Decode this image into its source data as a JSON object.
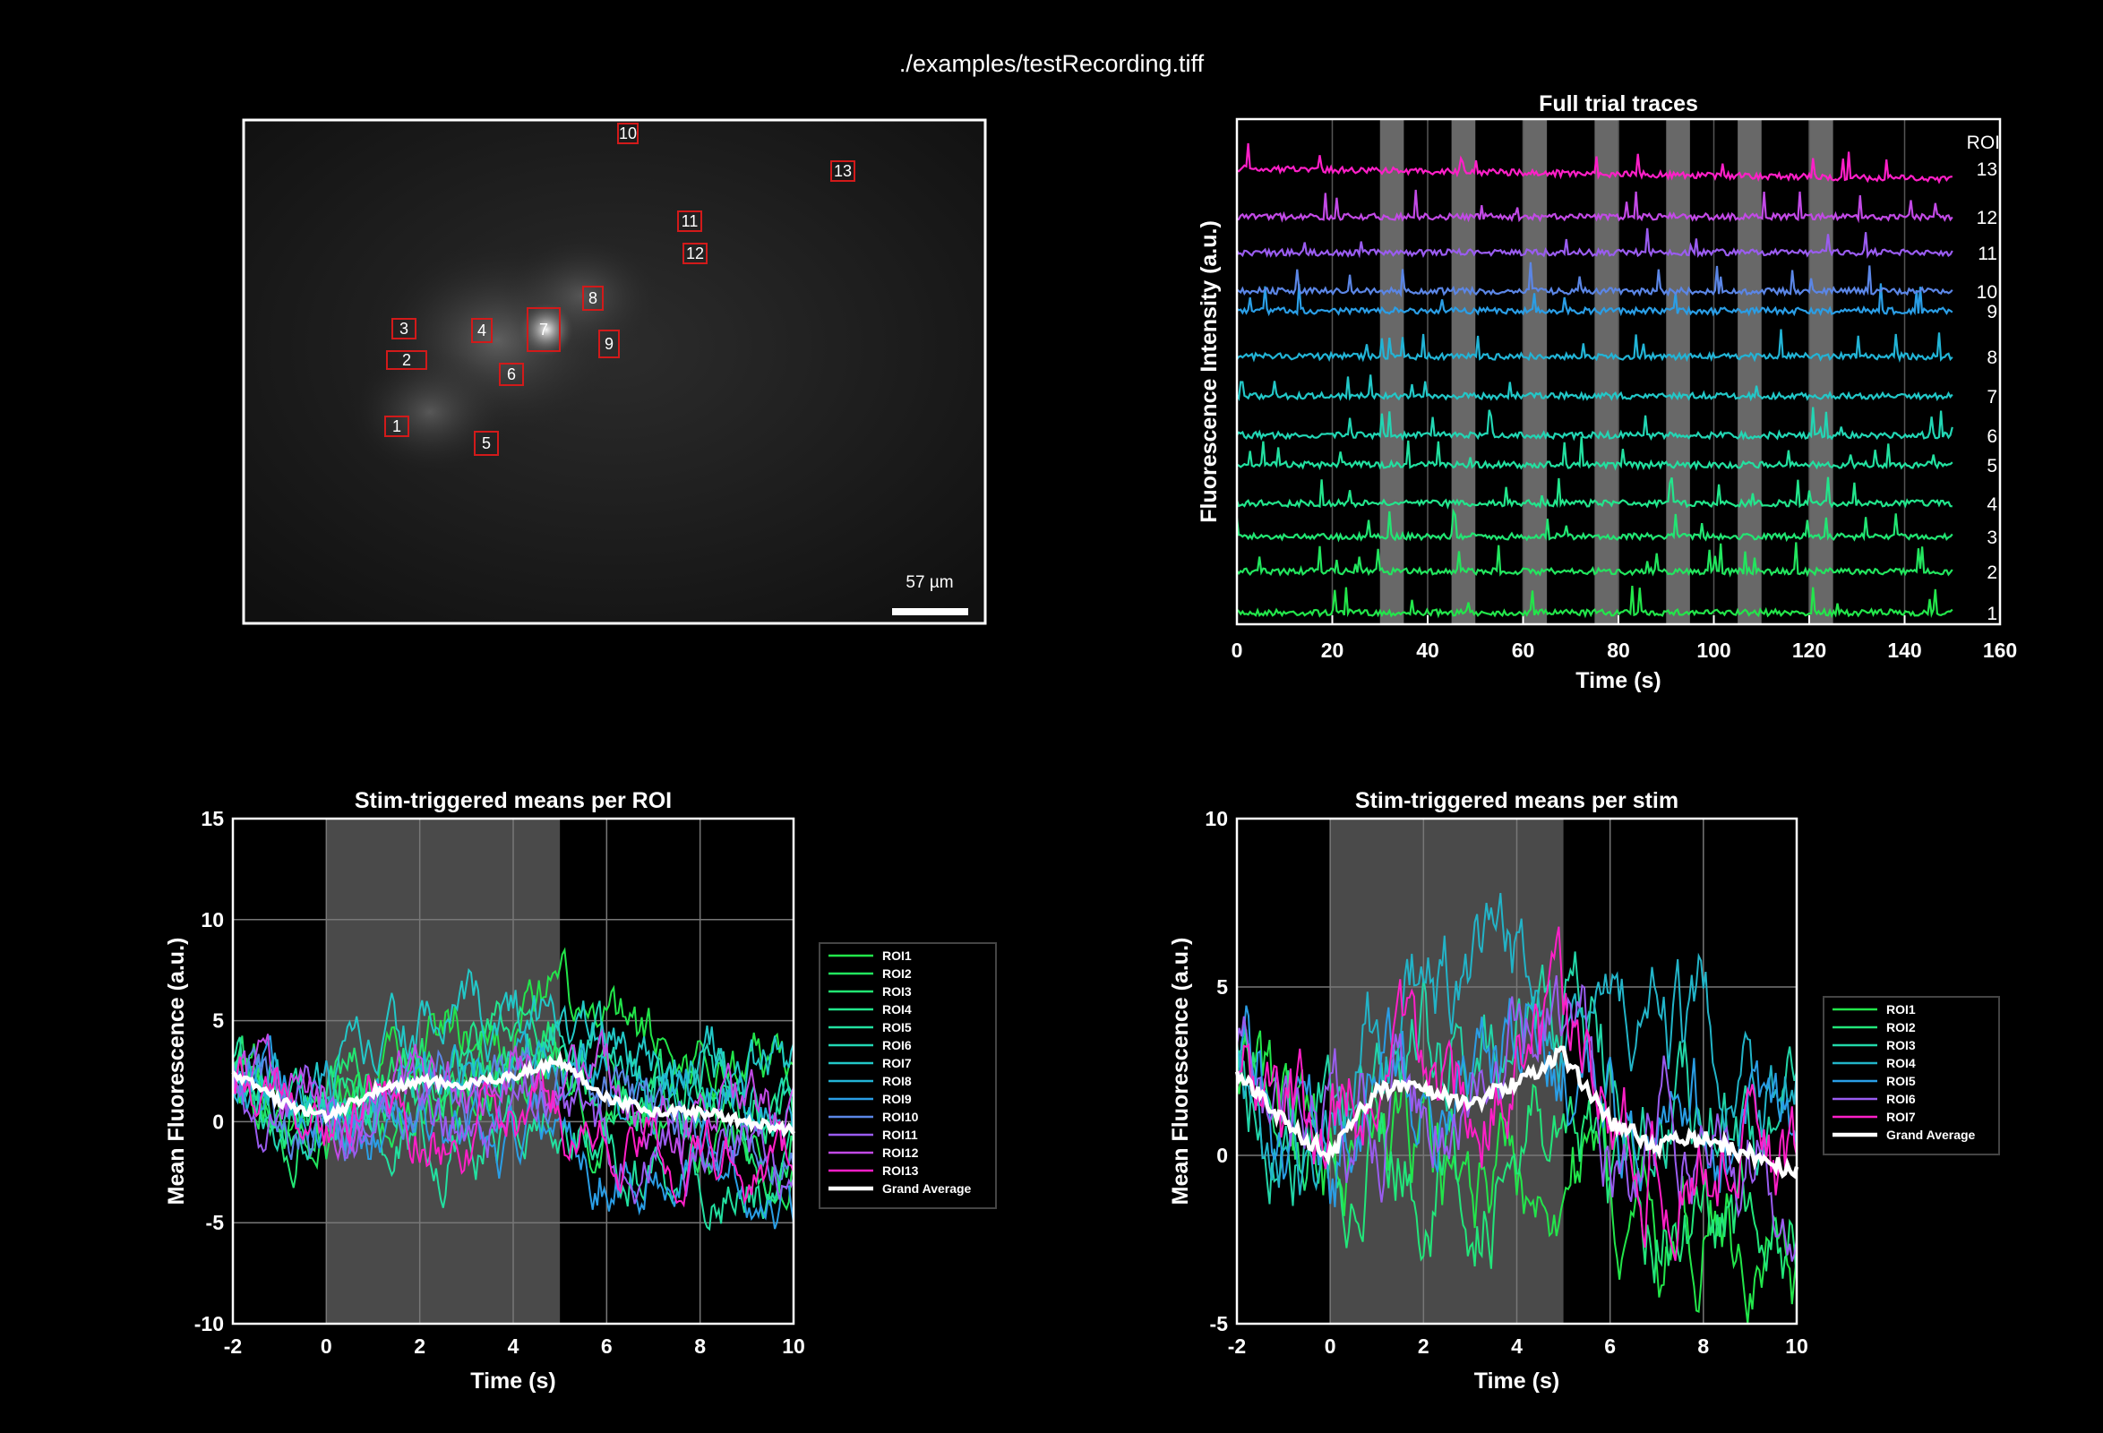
{
  "figure_title": "./examples/testRecording.tiff",
  "image_panel": {
    "scalebar_label": "57 µm",
    "rois": [
      "1",
      "2",
      "3",
      "4",
      "5",
      "6",
      "7",
      "8",
      "9",
      "10",
      "11",
      "12",
      "13"
    ]
  },
  "chart_data": [
    {
      "type": "line",
      "id": "full-trial",
      "title": "Full trial traces",
      "xlabel": "Time (s)",
      "ylabel": "Fluorescence Intensity (a.u.)",
      "xlim": [
        0,
        160
      ],
      "xticks": [
        0,
        20,
        40,
        60,
        80,
        100,
        120,
        140,
        160
      ],
      "grid": true,
      "legend_title": "ROI",
      "stim_windows": [
        [
          30,
          35
        ],
        [
          45,
          50
        ],
        [
          60,
          65
        ],
        [
          75,
          80
        ],
        [
          90,
          95
        ],
        [
          105,
          110
        ],
        [
          120,
          125
        ]
      ],
      "series": [
        {
          "name": "1",
          "color": "#22e64a",
          "offset": 1
        },
        {
          "name": "2",
          "color": "#22e65e",
          "offset": 2
        },
        {
          "name": "3",
          "color": "#22e673",
          "offset": 3
        },
        {
          "name": "4",
          "color": "#22e68c",
          "offset": 4
        },
        {
          "name": "5",
          "color": "#22e0a0",
          "offset": 5
        },
        {
          "name": "6",
          "color": "#22d6b4",
          "offset": 6
        },
        {
          "name": "7",
          "color": "#22c8c8",
          "offset": 7
        },
        {
          "name": "8",
          "color": "#22b4d6",
          "offset": 8
        },
        {
          "name": "9",
          "color": "#2a9ee6",
          "offset": 9
        },
        {
          "name": "10",
          "color": "#5b86e6",
          "offset": 10
        },
        {
          "name": "11",
          "color": "#9a5cf0",
          "offset": 11
        },
        {
          "name": "12",
          "color": "#c24ae6",
          "offset": 12
        },
        {
          "name": "13",
          "color": "#ff1fc8",
          "offset": 13
        }
      ]
    },
    {
      "type": "line",
      "id": "per-roi",
      "title": "Stim-triggered means per ROI",
      "xlabel": "Time (s)",
      "ylabel": "Mean Fluorescence (a.u.)",
      "xlim": [
        -2,
        10
      ],
      "ylim": [
        -10,
        15
      ],
      "xticks": [
        -2,
        0,
        2,
        4,
        6,
        8,
        10
      ],
      "yticks": [
        -10,
        -5,
        0,
        5,
        10,
        15
      ],
      "grid": true,
      "stim_window": [
        0,
        5
      ],
      "legend_placement": "outside-right",
      "series": [
        {
          "name": "ROI1",
          "color": "#22e64a"
        },
        {
          "name": "ROI2",
          "color": "#22e65e"
        },
        {
          "name": "ROI3",
          "color": "#22e673"
        },
        {
          "name": "ROI4",
          "color": "#22e68c"
        },
        {
          "name": "ROI5",
          "color": "#22e0a0"
        },
        {
          "name": "ROI6",
          "color": "#22d6b4"
        },
        {
          "name": "ROI7",
          "color": "#22c8c8"
        },
        {
          "name": "ROI8",
          "color": "#22b4d6"
        },
        {
          "name": "ROI9",
          "color": "#2a9ee6"
        },
        {
          "name": "ROI10",
          "color": "#5b86e6"
        },
        {
          "name": "ROI11",
          "color": "#9a5cf0"
        },
        {
          "name": "ROI12",
          "color": "#c24ae6"
        },
        {
          "name": "ROI13",
          "color": "#ff1fc8"
        },
        {
          "name": "Grand Average",
          "color": "#ffffff",
          "x": [
            -2,
            -1,
            0,
            1,
            2,
            3,
            4,
            5,
            6,
            7,
            8,
            9,
            10
          ],
          "values": [
            2.5,
            1.0,
            0.2,
            1.5,
            2.0,
            1.8,
            2.3,
            3.0,
            1.2,
            0.5,
            0.5,
            0.0,
            -0.5
          ]
        }
      ]
    },
    {
      "type": "line",
      "id": "per-stim",
      "title": "Stim-triggered means per stim",
      "xlabel": "Time (s)",
      "ylabel": "Mean Fluorescence (a.u.)",
      "xlim": [
        -2,
        10
      ],
      "ylim": [
        -5,
        10
      ],
      "xticks": [
        -2,
        0,
        2,
        4,
        6,
        8,
        10
      ],
      "yticks": [
        -5,
        0,
        5,
        10
      ],
      "grid": true,
      "stim_window": [
        0,
        5
      ],
      "legend_placement": "outside-right",
      "series": [
        {
          "name": "ROI1",
          "color": "#22e64a"
        },
        {
          "name": "ROI2",
          "color": "#22e67a"
        },
        {
          "name": "ROI3",
          "color": "#22d6a8"
        },
        {
          "name": "ROI4",
          "color": "#22b4c8"
        },
        {
          "name": "ROI5",
          "color": "#2a9ee6"
        },
        {
          "name": "ROI6",
          "color": "#9a5cf0"
        },
        {
          "name": "ROI7",
          "color": "#ff1fc8"
        },
        {
          "name": "Grand Average",
          "color": "#ffffff",
          "x": [
            -2,
            -1,
            0,
            1,
            2,
            3,
            4,
            5,
            6,
            7,
            8,
            9,
            10
          ],
          "values": [
            2.5,
            1.0,
            0.0,
            2.0,
            2.0,
            1.5,
            2.2,
            3.0,
            1.0,
            0.3,
            0.5,
            0.0,
            -0.5
          ]
        }
      ]
    }
  ]
}
